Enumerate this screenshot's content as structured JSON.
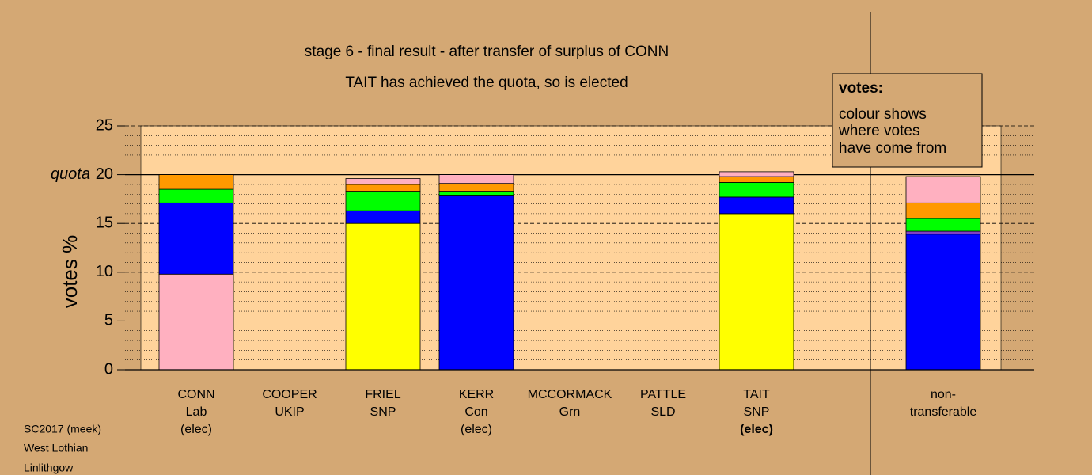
{
  "chart_data": {
    "type": "stacked-bar",
    "title": "stage 6 - final result - after transfer of surplus of CONN",
    "subtitle": "TAIT has achieved the quota, so is elected",
    "y_label": "votes %",
    "quota": 20,
    "quota_label": "quota",
    "ylim": [
      0,
      25
    ],
    "yticks": [
      0,
      5,
      10,
      15,
      20,
      25
    ],
    "minor_yticks": [
      1,
      2,
      3,
      4,
      6,
      7,
      8,
      9,
      11,
      12,
      13,
      14,
      16,
      17,
      18,
      19,
      21,
      22,
      23,
      24
    ],
    "grid": true,
    "categories": [
      [
        "CONN",
        "Lab",
        "(elec)"
      ],
      [
        "COOPER",
        "UKIP"
      ],
      [
        "FRIEL",
        "SNP"
      ],
      [
        "KERR",
        "Con",
        "(elec)"
      ],
      [
        "MCCORMACK",
        "Grn"
      ],
      [
        "PATTLE",
        "SLD"
      ],
      [
        "TAIT",
        "SNP",
        "(elec)"
      ],
      null,
      [
        "non-",
        "transferable"
      ]
    ],
    "segments": [
      [
        {
          "color": "#ffb0c0",
          "value": 9.8
        },
        {
          "color": "#0000ff",
          "value": 7.3
        },
        {
          "color": "#00ff00",
          "value": 1.4
        },
        {
          "color": "#ff9900",
          "value": 1.5
        }
      ],
      [],
      [
        {
          "color": "#ffff00",
          "value": 15.0
        },
        {
          "color": "#0000ff",
          "value": 1.3
        },
        {
          "color": "#00ff00",
          "value": 2.0
        },
        {
          "color": "#ff9900",
          "value": 0.7
        },
        {
          "color": "#ffb0c0",
          "value": 0.6
        }
      ],
      [
        {
          "color": "#0000ff",
          "value": 17.9
        },
        {
          "color": "#00ff00",
          "value": 0.4
        },
        {
          "color": "#ff9900",
          "value": 0.8
        },
        {
          "color": "#ffb0c0",
          "value": 0.9
        }
      ],
      [],
      [],
      [
        {
          "color": "#ffff00",
          "value": 16.0
        },
        {
          "color": "#0000ff",
          "value": 1.7
        },
        {
          "color": "#00ff00",
          "value": 1.5
        },
        {
          "color": "#ff9900",
          "value": 0.6
        },
        {
          "color": "#ffb0c0",
          "value": 0.5
        }
      ],
      [],
      [
        {
          "color": "#0000ff",
          "value": 13.9
        },
        {
          "color": "#8040c0",
          "value": 0.3
        },
        {
          "color": "#00ff00",
          "value": 1.3
        },
        {
          "color": "#ff9900",
          "value": 1.6
        },
        {
          "color": "#ffb0c0",
          "value": 2.7
        }
      ]
    ],
    "legend": {
      "title": "votes:",
      "lines": [
        "colour shows",
        "where votes",
        "have come from"
      ]
    },
    "footer": [
      "SC2017 (meek)",
      "West Lothian",
      "Linlithgow"
    ]
  }
}
